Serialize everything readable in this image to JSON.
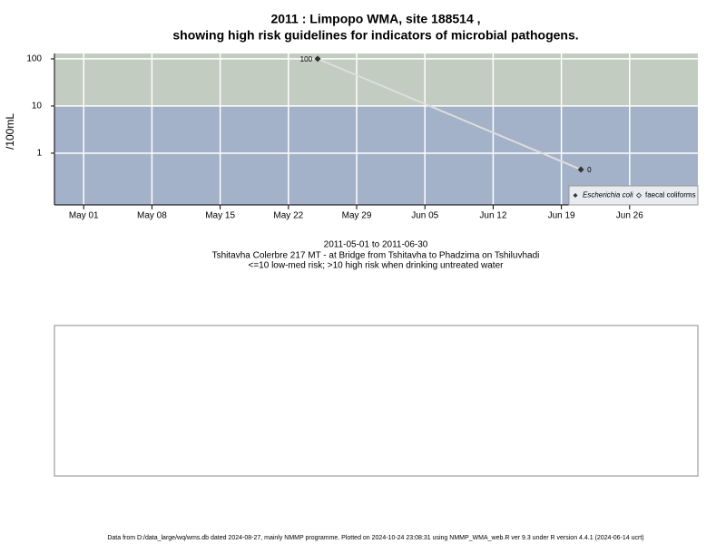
{
  "chart_data": {
    "type": "line",
    "title": [
      "2011 : Limpopo WMA, site 188514 ,",
      "showing high risk guidelines for indicators of microbial pathogens."
    ],
    "subtitle": [
      "2011-05-01 to 2011-06-30",
      "Tshitavha Colerbre 217 MT - at Bridge from Tshitavha to Phadzima on Tshiluvhadi",
      "<=10 low-med risk; >10 high risk when drinking untreated water"
    ],
    "y_label": "/100mL",
    "x": [
      "2011-05-25",
      "2011-06-21"
    ],
    "series": [
      {
        "name": "Escherichia coli",
        "color": "#333333",
        "line_color": "#dddddd",
        "values": [
          100,
          0.45
        ],
        "value_labels": [
          "100",
          "0"
        ]
      },
      {
        "name": "faecal coliforms",
        "color": "#333333",
        "values": [
          null,
          null
        ]
      }
    ],
    "log_y": true,
    "ylim": [
      0.08,
      130
    ],
    "yticks": [
      1,
      10,
      100
    ],
    "threshold": 10,
    "band_colors": {
      "high": "#c2ccc1",
      "low": "#a3b1c9"
    },
    "xlim": [
      "2011-04-28",
      "2011-07-03"
    ],
    "xticks": [
      {
        "value": "2011-05-01",
        "label": "May 01"
      },
      {
        "value": "2011-05-08",
        "label": "May 08"
      },
      {
        "value": "2011-05-15",
        "label": "May 15"
      },
      {
        "value": "2011-05-22",
        "label": "May 22"
      },
      {
        "value": "2011-05-29",
        "label": "May 29"
      },
      {
        "value": "2011-06-05",
        "label": "Jun 05"
      },
      {
        "value": "2011-06-12",
        "label": "Jun 12"
      },
      {
        "value": "2011-06-19",
        "label": "Jun 19"
      },
      {
        "value": "2011-06-26",
        "label": "Jun 26"
      }
    ],
    "grid": true,
    "legend_position": "bottom-right",
    "footer": "Data from D:/data_large/wq/wms.db dated 2024-08-27, mainly NMMP programme. Plotted on 2024-10-24 23:08:31 using NMMP_WMA_web.R ver 9.3 under R version 4.4.1 (2024-06-14 ucrt)"
  }
}
